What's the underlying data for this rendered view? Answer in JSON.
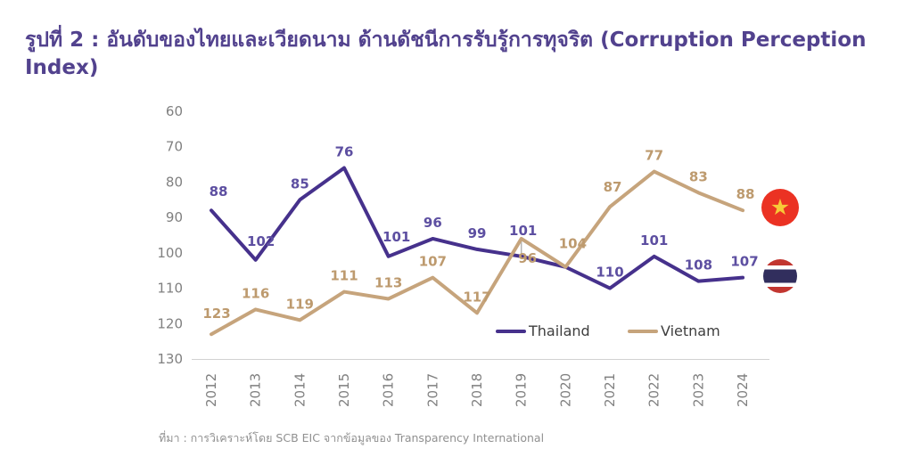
{
  "title": "รูปที่ 2 : อันดับของไทยและเวียดนาม ด้านดัชนีการรับรู้การทุจริต (Corruption Perception Index)",
  "source_note": "ที่มา : การวิเคราะห์โดย SCB EIC จากข้อมูลของ Transparency International",
  "legend": {
    "items": [
      {
        "label": "Thailand"
      },
      {
        "label": "Vietnam"
      }
    ]
  },
  "icons": {
    "vietnam_flag": "vietnam-flag-icon",
    "vietnam_star_glyph": "★",
    "thailand_flag": "thailand-flag-icon"
  },
  "colors": {
    "title": "#52428E",
    "thailand_line": "#46318C",
    "thailand_label": "#5D4FA1",
    "vietnam_line": "#C6A47C",
    "vietnam_label": "#BD9A6E",
    "axis_text": "#808080",
    "baseline": "#D2D2D2",
    "leader_line": "#B5B5B5",
    "legend_text": "#3E3E3E",
    "vietnam_flag_red": "#EB3223",
    "vietnam_flag_star": "#F7C938",
    "thailand_flag_red": "#C23630",
    "thailand_flag_navy": "#312E5D",
    "thailand_flag_white": "#FFFFFF"
  },
  "chart_data": {
    "type": "line",
    "title": "รูปที่ 2 : อันดับของไทยและเวียดนาม ด้านดัชนีการรับรู้การทุจริต (Corruption Perception Index)",
    "categories": [
      "2012",
      "2013",
      "2014",
      "2015",
      "2016",
      "2017",
      "2018",
      "2019",
      "2020",
      "2021",
      "2022",
      "2023",
      "2024"
    ],
    "series": [
      {
        "name": "Thailand",
        "color": "#46318C",
        "label_color": "#5D4FA1",
        "values": [
          88,
          102,
          85,
          76,
          101,
          96,
          99,
          101,
          104,
          110,
          101,
          108,
          107
        ],
        "visible_labels": [
          "88",
          "102",
          "85",
          "76",
          "101",
          "96",
          "99",
          "101",
          null,
          "110",
          "101",
          "108",
          "107"
        ]
      },
      {
        "name": "Vietnam",
        "color": "#C6A47C",
        "label_color": "#BD9A6E",
        "values": [
          123,
          116,
          119,
          111,
          113,
          107,
          117,
          96,
          104,
          87,
          77,
          83,
          88
        ],
        "visible_labels": [
          "123",
          "116",
          "119",
          "111",
          "113",
          "107",
          "117",
          "96",
          "104",
          "87",
          "77",
          "83",
          "88"
        ]
      }
    ],
    "xlabel": "",
    "ylabel": "",
    "y_axis": {
      "ticks": [
        60,
        70,
        80,
        90,
        100,
        110,
        120,
        130
      ],
      "min": 60,
      "max": 130,
      "inverted": true
    },
    "grid": false,
    "legend_position": "bottom-inside"
  }
}
